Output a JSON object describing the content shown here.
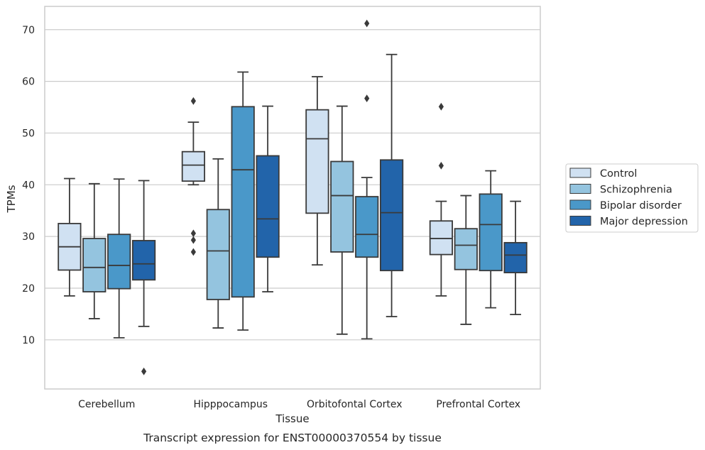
{
  "chart_data": {
    "type": "boxplot",
    "title": "Transcript expression for ENST00000370554 by tissue",
    "xlabel": "Tissue",
    "ylabel": "TPMs",
    "ylim": [
      0.5,
      74.5
    ],
    "yticks": [
      10,
      20,
      30,
      40,
      50,
      60,
      70
    ],
    "grid": true,
    "legend_position": "right",
    "categories": [
      "Cerebellum",
      "Hipppocampus",
      "Orbitofontal Cortex",
      "Prefrontal Cortex"
    ],
    "series": [
      {
        "name": "Control",
        "color": "#d0e1f2",
        "boxes": [
          {
            "whislo": 18.5,
            "q1": 23.5,
            "med": 28.0,
            "q3": 32.5,
            "whishi": 41.2,
            "fliers": []
          },
          {
            "whislo": 40.0,
            "q1": 40.7,
            "med": 43.8,
            "q3": 46.4,
            "whishi": 52.1,
            "fliers": [
              56.2,
              30.6,
              29.3,
              27.0
            ]
          },
          {
            "whislo": 24.5,
            "q1": 34.5,
            "med": 48.9,
            "q3": 54.5,
            "whishi": 60.9,
            "fliers": []
          },
          {
            "whislo": 18.5,
            "q1": 26.5,
            "med": 29.6,
            "q3": 33.0,
            "whishi": 36.8,
            "fliers": [
              55.1,
              43.7
            ]
          }
        ]
      },
      {
        "name": "Schizophrenia",
        "color": "#94c4df",
        "boxes": [
          {
            "whislo": 14.1,
            "q1": 19.3,
            "med": 24.0,
            "q3": 29.6,
            "whishi": 40.2,
            "fliers": []
          },
          {
            "whislo": 12.3,
            "q1": 17.8,
            "med": 27.2,
            "q3": 35.2,
            "whishi": 45.0,
            "fliers": []
          },
          {
            "whislo": 11.1,
            "q1": 27.0,
            "med": 37.9,
            "q3": 44.5,
            "whishi": 55.2,
            "fliers": []
          },
          {
            "whislo": 13.0,
            "q1": 23.6,
            "med": 28.3,
            "q3": 31.5,
            "whishi": 37.9,
            "fliers": []
          }
        ]
      },
      {
        "name": "Bipolar disorder",
        "color": "#4a98c9",
        "boxes": [
          {
            "whislo": 10.4,
            "q1": 19.9,
            "med": 24.4,
            "q3": 30.4,
            "whishi": 41.1,
            "fliers": []
          },
          {
            "whislo": 11.9,
            "q1": 18.3,
            "med": 42.9,
            "q3": 55.1,
            "whishi": 61.8,
            "fliers": []
          },
          {
            "whislo": 10.2,
            "q1": 26.0,
            "med": 30.4,
            "q3": 37.7,
            "whishi": 41.4,
            "fliers": [
              56.7,
              71.2
            ]
          },
          {
            "whislo": 16.2,
            "q1": 23.4,
            "med": 32.3,
            "q3": 38.2,
            "whishi": 42.7,
            "fliers": []
          }
        ]
      },
      {
        "name": "Major depression",
        "color": "#2264aa",
        "boxes": [
          {
            "whislo": 12.6,
            "q1": 21.6,
            "med": 24.7,
            "q3": 29.2,
            "whishi": 40.8,
            "fliers": [
              3.9
            ]
          },
          {
            "whislo": 19.3,
            "q1": 26.0,
            "med": 33.4,
            "q3": 45.6,
            "whishi": 55.2,
            "fliers": []
          },
          {
            "whislo": 14.5,
            "q1": 23.4,
            "med": 34.6,
            "q3": 44.8,
            "whishi": 65.2,
            "fliers": []
          },
          {
            "whislo": 14.9,
            "q1": 23.0,
            "med": 26.4,
            "q3": 28.8,
            "whishi": 36.8,
            "fliers": []
          }
        ]
      }
    ]
  }
}
